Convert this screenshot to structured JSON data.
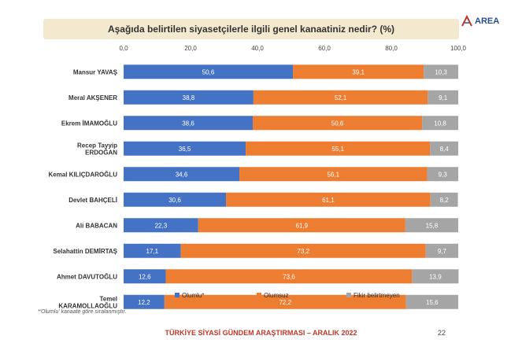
{
  "title": "Aşağıda belirtilen siyasetçilerle ilgili genel kanaatiniz nedir? (%)",
  "logo_text": "AREA",
  "footnote": "*'Olumlu' kanaate göre sıralanmıştır.",
  "footer": "TÜRKİYE SİYASİ GÜNDEM ARAŞTIRMASI – ARALIK 2022",
  "page_number": "22",
  "chart_data": {
    "type": "bar",
    "orientation": "horizontal",
    "stacked": true,
    "xlim": [
      0,
      100
    ],
    "xticks": [
      "0,0",
      "20,0",
      "40,0",
      "60,0",
      "80,0",
      "100,0"
    ],
    "legend_position": "bottom",
    "categories": [
      [
        "Mansur YAVAŞ"
      ],
      [
        "Meral AKŞENER"
      ],
      [
        "Ekrem İMAMOĞLU"
      ],
      [
        "Recep Tayyip",
        "ERDOĞAN"
      ],
      [
        "Kemal KILIÇDAROĞLU"
      ],
      [
        "Devlet BAHÇELİ"
      ],
      [
        "Ali BABACAN"
      ],
      [
        "Selahattin DEMİRTAŞ"
      ],
      [
        "Ahmet DAVUTOĞLU"
      ],
      [
        "Temel",
        "KARAMOLLAOĞLU"
      ]
    ],
    "series": [
      {
        "name": "Olumlu*",
        "color": "#4472c4",
        "values": [
          50.6,
          38.8,
          38.6,
          36.5,
          34.6,
          30.6,
          22.3,
          17.1,
          12.6,
          12.2
        ],
        "labels": [
          "50,6",
          "38,8",
          "38,6",
          "36,5",
          "34,6",
          "30,6",
          "22,3",
          "17,1",
          "12,6",
          "12,2"
        ]
      },
      {
        "name": "Olumsuz",
        "color": "#ed7d31",
        "values": [
          39.1,
          52.1,
          50.6,
          55.1,
          56.1,
          61.1,
          61.9,
          73.2,
          73.6,
          72.2
        ],
        "labels": [
          "39,1",
          "52,1",
          "50,6",
          "55,1",
          "56,1",
          "61,1",
          "61,9",
          "73,2",
          "73,6",
          "72,2"
        ]
      },
      {
        "name": "Fikir belirtmeyen",
        "color": "#a5a5a5",
        "values": [
          10.3,
          9.1,
          10.8,
          8.4,
          9.3,
          8.2,
          15.8,
          9.7,
          13.9,
          15.6
        ],
        "labels": [
          "10,3",
          "9,1",
          "10,8",
          "8,4",
          "9,3",
          "8,2",
          "15,8",
          "9,7",
          "13,9",
          "15,6"
        ]
      }
    ]
  }
}
